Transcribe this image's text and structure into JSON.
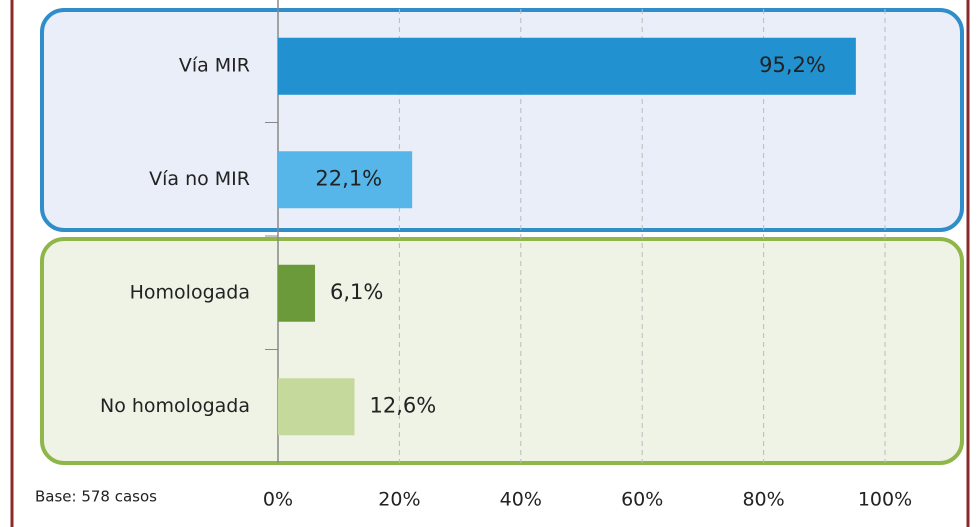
{
  "chart_data": {
    "type": "bar",
    "orientation": "horizontal",
    "categories": [
      "Vía MIR",
      "Vía no MIR",
      "Homologada",
      "No homologada"
    ],
    "values": [
      95.2,
      22.1,
      6.1,
      12.6
    ],
    "value_labels": [
      "95,2%",
      "22,1%",
      "6,1%",
      "12,6%"
    ],
    "colors": [
      "#2191d0",
      "#56b6e9",
      "#6b9a3a",
      "#c5d99d"
    ],
    "xlim": [
      0,
      100
    ],
    "xticks": [
      {
        "value": 0,
        "label": "0%"
      },
      {
        "value": 20,
        "label": "20%"
      },
      {
        "value": 40,
        "label": "40%"
      },
      {
        "value": 60,
        "label": "60%"
      },
      {
        "value": 80,
        "label": "80%"
      },
      {
        "value": 100,
        "label": "100%"
      }
    ],
    "grid": true,
    "note": "Base: 578 casos"
  }
}
